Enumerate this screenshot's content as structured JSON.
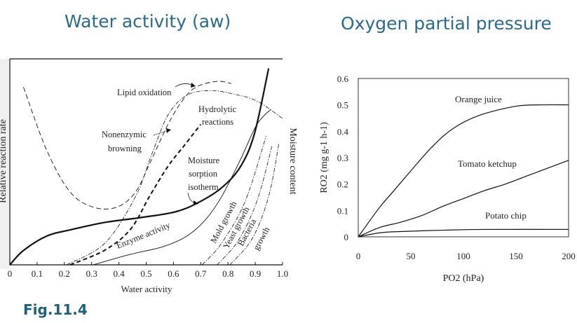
{
  "titles": {
    "left": "Water activity (aw)",
    "right": "Oxygen partial pressure"
  },
  "caption": "Fig.11.4",
  "colors": {
    "title": "#2a6b8c",
    "caption": "#1f5f7a",
    "lines": "#111111"
  },
  "chart_data": [
    {
      "type": "line",
      "xlabel": "Water activity",
      "ylabel": "Relative reaction rate",
      "y2label": "Moisture content",
      "xlim": [
        0,
        1.0
      ],
      "ylim": [
        0,
        1
      ],
      "xticks": [
        "0",
        "0.1",
        "0.2",
        "0.3",
        "0.4",
        "0.5",
        "0.6",
        "0.7",
        "0.8",
        "0.9",
        "1.0"
      ],
      "grid": false,
      "series": [
        {
          "name": "Moisture sorption isotherm",
          "style": "thick-solid",
          "x": [
            0,
            0.05,
            0.135,
            0.22,
            0.35,
            0.478,
            0.606,
            0.692,
            0.778,
            0.846,
            0.897,
            0.949
          ],
          "y": [
            0,
            0.07,
            0.14,
            0.17,
            0.207,
            0.23,
            0.258,
            0.304,
            0.377,
            0.479,
            0.639,
            0.957
          ]
        },
        {
          "name": "Lipid oxidation",
          "style": "dashed",
          "x": [
            0.05,
            0.135,
            0.221,
            0.306,
            0.392,
            0.461,
            0.52,
            0.58,
            0.632,
            0.683,
            0.76,
            0.812
          ],
          "y": [
            0.866,
            0.559,
            0.355,
            0.281,
            0.281,
            0.355,
            0.514,
            0.684,
            0.798,
            0.866,
            0.894,
            0.883
          ]
        },
        {
          "name": "Nonenzymic browning",
          "style": "dash-dot",
          "x": [
            0.208,
            0.349,
            0.461,
            0.52,
            0.58,
            0.649,
            0.735,
            0.82,
            0.906,
            1.0
          ],
          "y": [
            0,
            0.106,
            0.333,
            0.537,
            0.73,
            0.826,
            0.849,
            0.832,
            0.798,
            0.713
          ]
        },
        {
          "name": "Hydrolytic reactions",
          "style": "thick-dashed",
          "x": [
            0.221,
            0.349,
            0.443,
            0.512,
            0.58,
            0.64,
            0.7
          ],
          "y": [
            0,
            0.072,
            0.174,
            0.333,
            0.48,
            0.582,
            0.684
          ]
        },
        {
          "name": "Enzyme activity",
          "style": "thin-solid",
          "x": [
            0.306,
            0.435,
            0.563,
            0.649,
            0.717,
            0.777,
            0.846,
            0.906,
            0.957
          ],
          "y": [
            0,
            0.049,
            0.089,
            0.14,
            0.219,
            0.333,
            0.514,
            0.684,
            0.758
          ]
        },
        {
          "name": "Mold growth",
          "style": "dash-dot",
          "x": [
            0.705,
            0.777,
            0.863,
            0.94
          ],
          "y": [
            0,
            0.106,
            0.31,
            0.628
          ]
        },
        {
          "name": "Yeast growth",
          "style": "dash-dot",
          "x": [
            0.76,
            0.837,
            0.906,
            0.961
          ],
          "y": [
            0,
            0.117,
            0.31,
            0.577
          ]
        },
        {
          "name": "Bacteria growth",
          "style": "dash-dot",
          "x": [
            0.807,
            0.889,
            0.949,
            0.987
          ],
          "y": [
            0,
            0.128,
            0.333,
            0.594
          ]
        }
      ]
    },
    {
      "type": "line",
      "xlabel": "PO2 (hPa)",
      "ylabel": "RO2 (mg g-1 h-1)",
      "xlim": [
        0,
        200
      ],
      "ylim": [
        0,
        0.6
      ],
      "xticks": [
        "0",
        "50",
        "100",
        "150",
        "200"
      ],
      "yticks": [
        "0",
        "0.1",
        "0.2",
        "0.3",
        "0.4",
        "0.5",
        "0.6"
      ],
      "grid": false,
      "series": [
        {
          "name": "Orange juice",
          "x": [
            0,
            20,
            35,
            50,
            70,
            90,
            115,
            150,
            175,
            200
          ],
          "y": [
            0,
            0.11,
            0.18,
            0.25,
            0.34,
            0.41,
            0.46,
            0.495,
            0.5,
            0.5
          ]
        },
        {
          "name": "Tomato ketchup",
          "x": [
            0,
            20,
            40,
            60,
            80,
            100,
            120,
            140,
            160,
            180,
            200
          ],
          "y": [
            0,
            0.035,
            0.055,
            0.08,
            0.115,
            0.145,
            0.175,
            0.2,
            0.23,
            0.26,
            0.29
          ]
        },
        {
          "name": "Potato chip",
          "x": [
            0,
            20,
            40,
            80,
            120,
            200
          ],
          "y": [
            0,
            0.015,
            0.02,
            0.025,
            0.028,
            0.028
          ]
        }
      ]
    }
  ]
}
